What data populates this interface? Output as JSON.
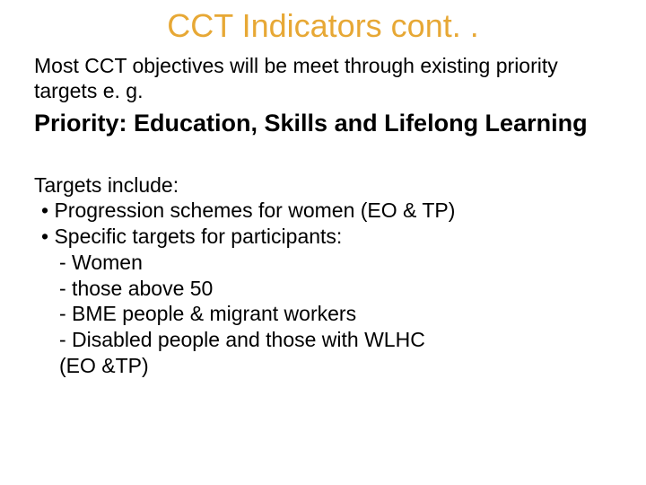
{
  "colors": {
    "title": "#e7a835",
    "body": "#000000",
    "background": "#ffffff"
  },
  "typography": {
    "title_fontsize": 36,
    "body_fontsize": 23,
    "priority_fontsize": 27,
    "font_family": "Arial"
  },
  "title": "CCT Indicators cont. .",
  "intro": "Most CCT objectives will be meet through existing priority targets e. g.",
  "priority": "Priority: Education, Skills and Lifelong Learning",
  "targets_lead": "Targets include:",
  "bullets": [
    "•  Progression schemes for women (EO & TP)",
    "•  Specific targets for participants:"
  ],
  "subitems": [
    "- Women",
    "- those above 50",
    "- BME people & migrant workers",
    "- Disabled people and those with WLHC"
  ],
  "trailer": "(EO &TP)"
}
